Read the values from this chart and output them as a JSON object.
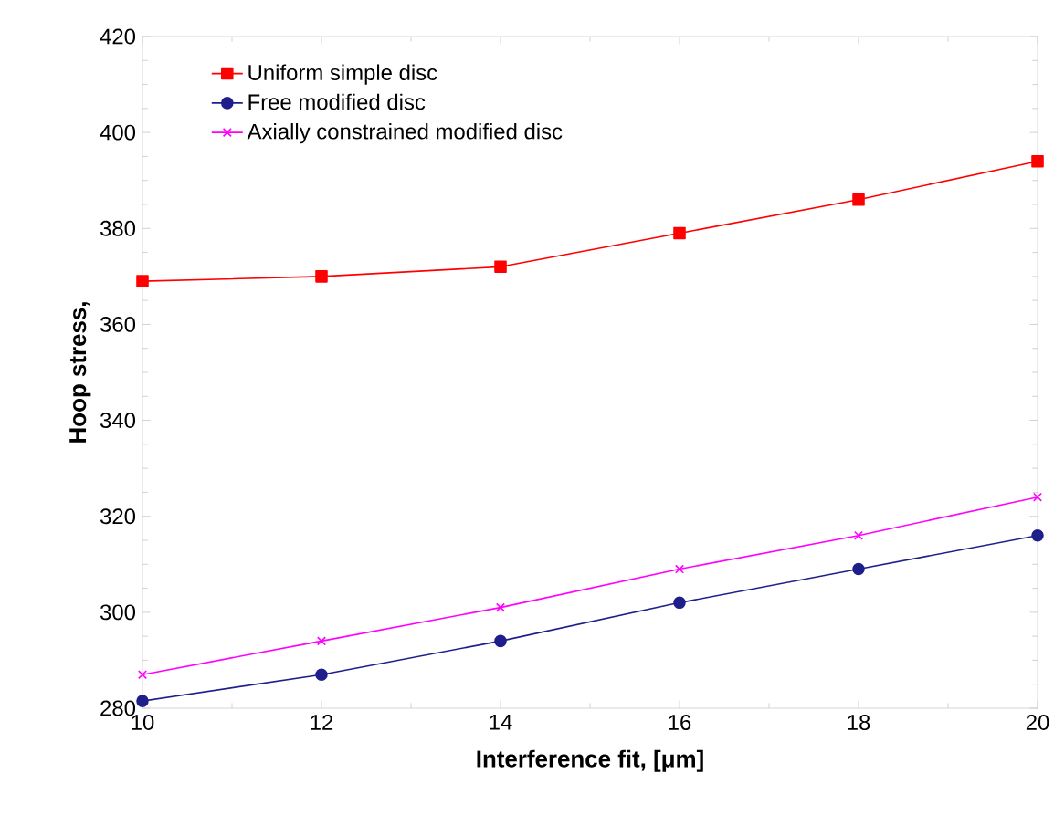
{
  "chart_data": {
    "type": "line",
    "xlabel": "Interference fit, [μm]",
    "ylabel": "Hoop stress,",
    "x": [
      10,
      12,
      14,
      16,
      18,
      20
    ],
    "series": [
      {
        "name": "Uniform simple disc",
        "color": "#ff0000",
        "marker": "square",
        "values": [
          369,
          370,
          372,
          379,
          386,
          394
        ]
      },
      {
        "name": "Free modified disc",
        "color": "#1f1f8c",
        "marker": "circle",
        "values": [
          281.5,
          287,
          294,
          302,
          309,
          316
        ]
      },
      {
        "name": "Axially constrained modified disc",
        "color": "#ff00ff",
        "marker": "cross",
        "values": [
          287,
          294,
          301,
          309,
          316,
          324
        ]
      }
    ],
    "xlim": [
      10,
      20
    ],
    "ylim": [
      280,
      420
    ],
    "xticks": [
      10,
      12,
      14,
      16,
      18,
      20
    ],
    "yticks": [
      280,
      300,
      320,
      340,
      360,
      380,
      400,
      420
    ],
    "grid": false,
    "legend": "top left",
    "line_style": "solid"
  }
}
